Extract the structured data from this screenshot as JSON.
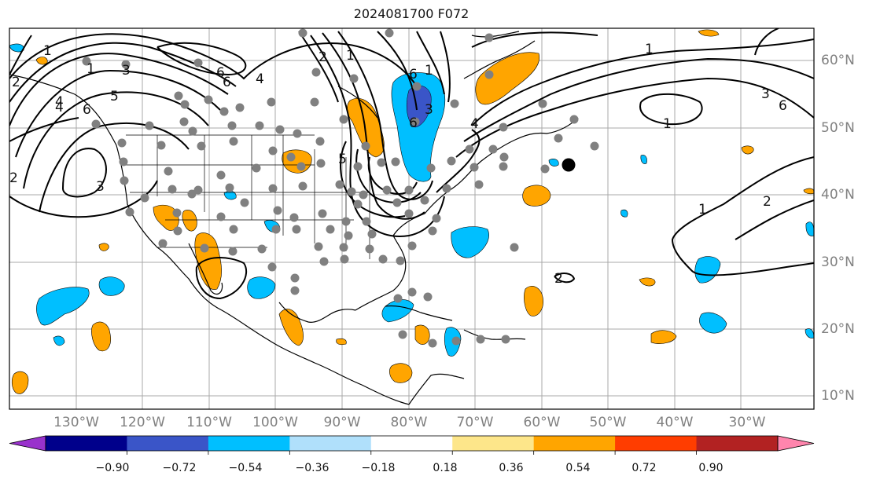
{
  "title": "2024081700 F072",
  "lat_labels": [
    "60°N",
    "50°N",
    "40°N",
    "30°N",
    "20°N",
    "10°N"
  ],
  "lon_labels": [
    "130°W",
    "120°W",
    "110°W",
    "100°W",
    "90°W",
    "80°W",
    "70°W",
    "60°W",
    "50°W",
    "40°W",
    "30°W"
  ],
  "colorbar": {
    "ticks": [
      "−0.90",
      "−0.72",
      "−0.54",
      "−0.36",
      "−0.18",
      "0.18",
      "0.36",
      "0.54",
      "0.72",
      "0.90"
    ],
    "colors": [
      "#9932cc",
      "#00008b",
      "#3a55c8",
      "#00bfff",
      "#b0e0fb",
      "#ffffff",
      "#fde68a",
      "#ffa500",
      "#ff3d00",
      "#b22222",
      "#ff85ad"
    ]
  },
  "contour_labels": [
    "1",
    "2",
    "3",
    "4",
    "5",
    "6",
    "1",
    "2",
    "3",
    "4",
    "6",
    "6",
    "2",
    "1",
    "4",
    "6",
    "1",
    "3",
    "4",
    "6",
    "5",
    "1",
    "1",
    "2",
    "3",
    "2",
    "1",
    "6"
  ]
}
